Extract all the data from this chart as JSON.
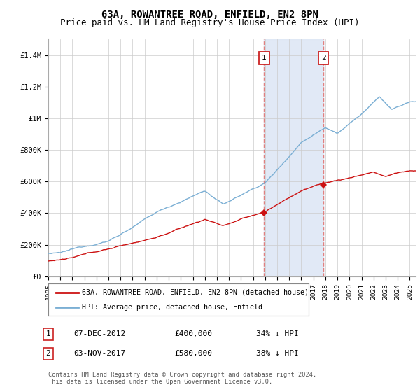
{
  "title": "63A, ROWANTREE ROAD, ENFIELD, EN2 8PN",
  "subtitle": "Price paid vs. HM Land Registry's House Price Index (HPI)",
  "ylabel_ticks": [
    "£0",
    "£200K",
    "£400K",
    "£600K",
    "£800K",
    "£1M",
    "£1.2M",
    "£1.4M"
  ],
  "ylabel_values": [
    0,
    200000,
    400000,
    600000,
    800000,
    1000000,
    1200000,
    1400000
  ],
  "ylim": [
    0,
    1500000
  ],
  "x_start_year": 1995,
  "x_end_year": 2025,
  "hpi_color": "#7bafd4",
  "price_color": "#cc1111",
  "bg_shade_color": "#dce6f5",
  "dashed_line_color": "#e08080",
  "purchase1_year": 2012.92,
  "purchase1_price": 400000,
  "purchase2_year": 2017.84,
  "purchase2_price": 580000,
  "legend_label1": "63A, ROWANTREE ROAD, ENFIELD, EN2 8PN (detached house)",
  "legend_label2": "HPI: Average price, detached house, Enfield",
  "table_row1": [
    "1",
    "07-DEC-2012",
    "£400,000",
    "34% ↓ HPI"
  ],
  "table_row2": [
    "2",
    "03-NOV-2017",
    "£580,000",
    "38% ↓ HPI"
  ],
  "footer": "Contains HM Land Registry data © Crown copyright and database right 2024.\nThis data is licensed under the Open Government Licence v3.0.",
  "title_fontsize": 10,
  "subtitle_fontsize": 9,
  "tick_fontsize": 7.5
}
